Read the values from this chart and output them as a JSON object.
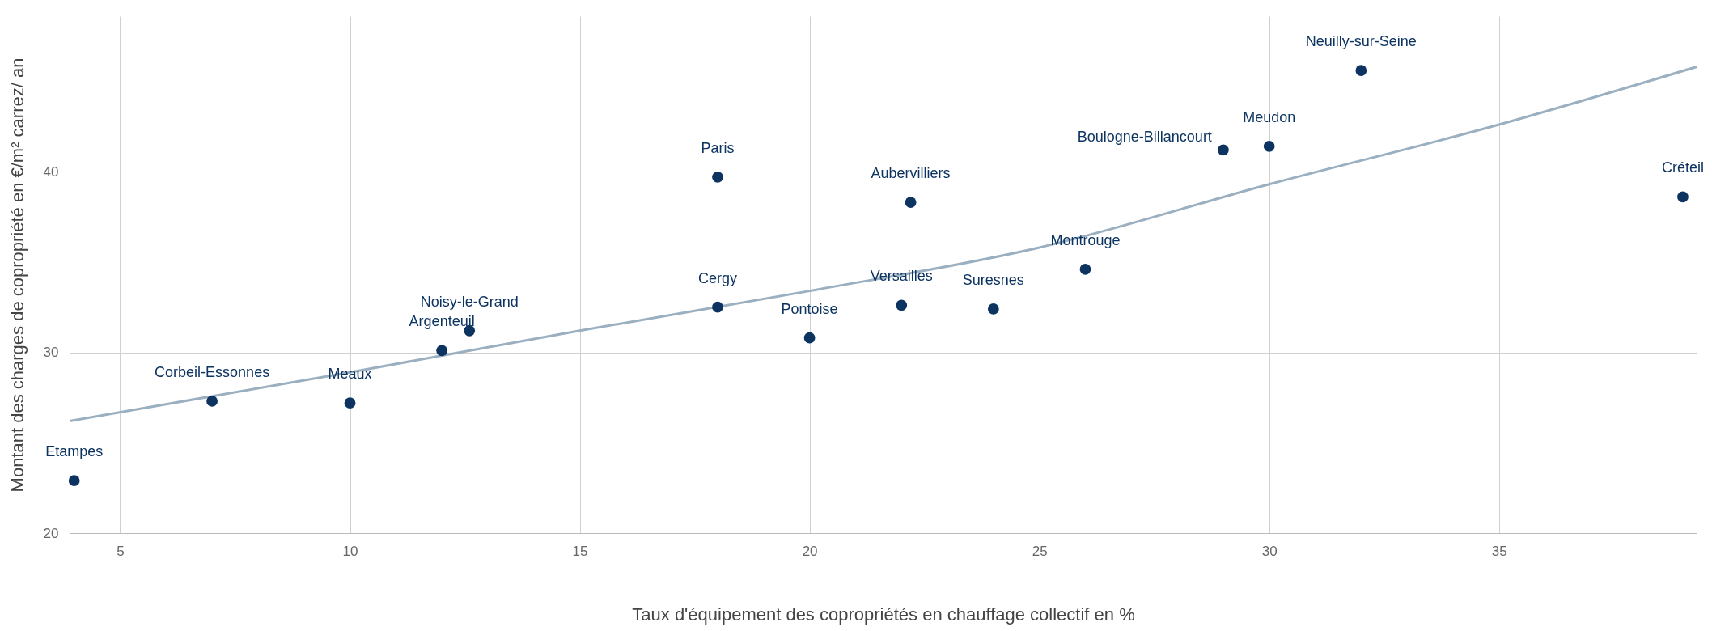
{
  "chart_data": {
    "type": "scatter",
    "xlabel": "Taux d'équipement des copropriétés en chauffage collectif en %",
    "ylabel": "Montant des charges de copropriété en €/m² carrez/ an",
    "xlim": [
      3.9,
      39.3
    ],
    "ylim": [
      20,
      48.6
    ],
    "xticks": [
      5,
      10,
      15,
      20,
      25,
      30,
      35
    ],
    "yticks": [
      20,
      30,
      40
    ],
    "grid": true,
    "marker": "circle",
    "series": [
      {
        "color": "#0d3461",
        "x": [
          4,
          7,
          10,
          12,
          12.6,
          18,
          18,
          20,
          22,
          22.2,
          24,
          26,
          29,
          30,
          32,
          39
        ],
        "values": [
          22.9,
          27.3,
          27.2,
          30.1,
          31.2,
          32.5,
          39.7,
          30.8,
          32.6,
          38.3,
          32.4,
          34.6,
          41.2,
          41.4,
          45.6,
          38.6
        ]
      },
      {
        "type": "line",
        "marker": "none",
        "color": "#9aafc0",
        "x": [
          3.9,
          10,
          15,
          20,
          25,
          30,
          35,
          39.3
        ],
        "values": [
          26.2,
          28.9,
          31.2,
          33.4,
          35.8,
          39.3,
          42.6,
          45.8
        ]
      }
    ],
    "annotations": [
      {
        "text": "Etampes",
        "x": 4,
        "y": 22.9
      },
      {
        "text": "Corbeil-Essonnes",
        "x": 7,
        "y": 27.3
      },
      {
        "text": "Meaux",
        "x": 10,
        "y": 27.2
      },
      {
        "text": "Argenteuil",
        "x": 12,
        "y": 30.1
      },
      {
        "text": "Noisy-le-Grand",
        "x": 12.6,
        "y": 31.2
      },
      {
        "text": "Cergy",
        "x": 18,
        "y": 32.5
      },
      {
        "text": "Paris",
        "x": 18,
        "y": 39.7
      },
      {
        "text": "Pontoise",
        "x": 20,
        "y": 30.8
      },
      {
        "text": "Versailles",
        "x": 22,
        "y": 32.6
      },
      {
        "text": "Aubervilliers",
        "x": 22.2,
        "y": 38.3
      },
      {
        "text": "Suresnes",
        "x": 24,
        "y": 32.4
      },
      {
        "text": "Montrouge",
        "x": 26,
        "y": 34.6
      },
      {
        "text": "Boulogne-Billancourt",
        "x": 29,
        "y": 41.2
      },
      {
        "text": "Meudon",
        "x": 30,
        "y": 41.4
      },
      {
        "text": "Neuilly-sur-Seine",
        "x": 32,
        "y": 45.6
      },
      {
        "text": "Créteil",
        "x": 39,
        "y": 38.6
      }
    ]
  }
}
